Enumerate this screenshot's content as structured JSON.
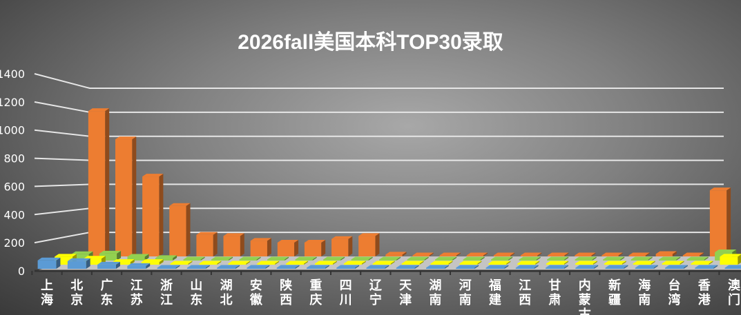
{
  "chart_data": {
    "type": "bar",
    "title": "2026fall美国本科TOP30录取",
    "xlabel": "",
    "ylabel": "",
    "ylim": [
      0,
      1400
    ],
    "yticks": [
      "0",
      "200",
      "400",
      "600",
      "800",
      "1000",
      "1200",
      "1400"
    ],
    "grid": true,
    "legend": "none",
    "three_d": true,
    "categories": [
      "上海",
      "北京",
      "广东",
      "江苏",
      "浙江",
      "山东",
      "湖北",
      "安徽",
      "陕西",
      "重庆",
      "四川",
      "辽宁",
      "天津",
      "湖南",
      "河南",
      "福建",
      "江西",
      "甘肃",
      "内蒙古",
      "新疆",
      "海南",
      "台湾",
      "香港",
      "澳门"
    ],
    "series": [
      {
        "color": "#5b9bd5",
        "values": [
          60,
          55,
          30,
          20,
          2,
          2,
          2,
          0,
          2,
          2,
          2,
          0,
          3,
          0,
          3,
          3,
          0,
          3,
          0,
          0,
          0,
          0,
          3,
          0
        ]
      },
      {
        "color": "#ffff00",
        "values": [
          60,
          45,
          20,
          20,
          3,
          3,
          3,
          0,
          0,
          3,
          5,
          0,
          0,
          0,
          0,
          5,
          0,
          0,
          0,
          0,
          0,
          8,
          3,
          60
        ]
      },
      {
        "color": "#92d050",
        "values": [
          50,
          55,
          30,
          20,
          3,
          3,
          3,
          3,
          3,
          3,
          3,
          3,
          0,
          3,
          0,
          0,
          0,
          0,
          3,
          3,
          3,
          5,
          3,
          65
        ]
      },
      {
        "color": "#ed7d31",
        "values": [
          1210,
          975,
          665,
          420,
          180,
          170,
          130,
          115,
          115,
          145,
          170,
          15,
          5,
          5,
          8,
          8,
          3,
          3,
          3,
          3,
          3,
          20,
          3,
          550
        ]
      }
    ]
  }
}
